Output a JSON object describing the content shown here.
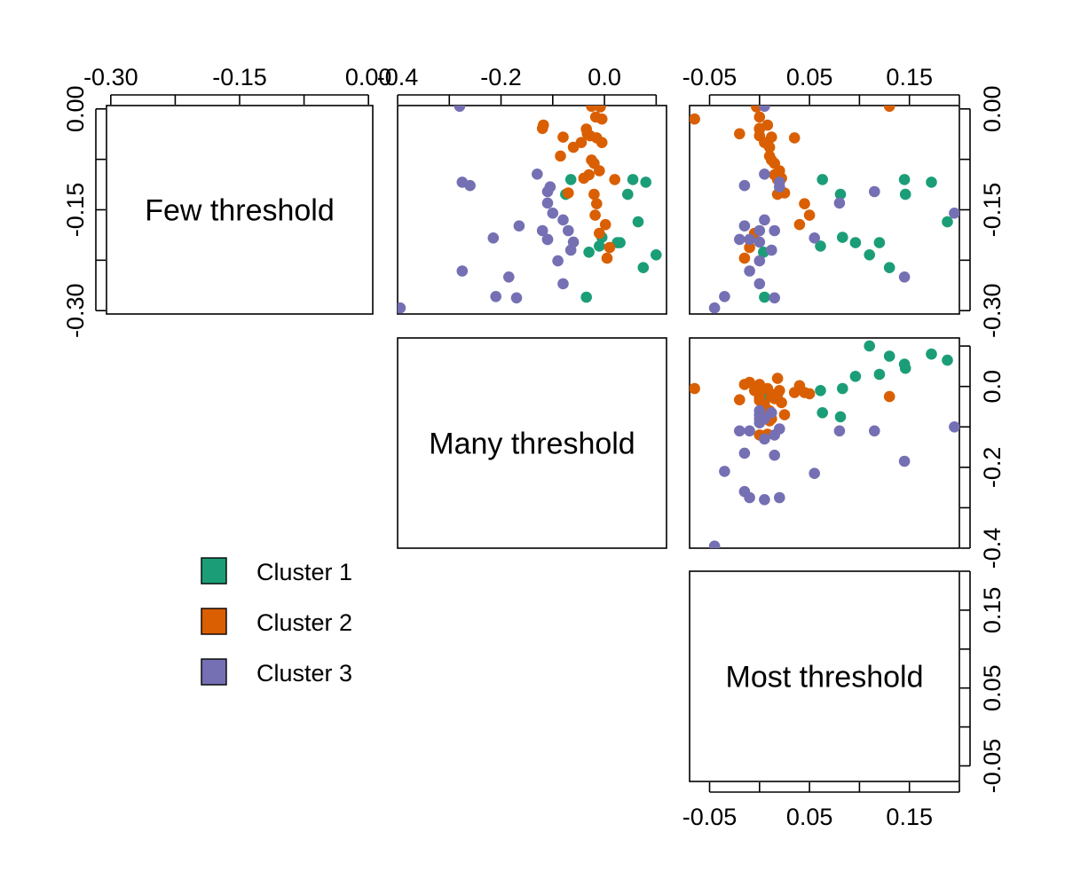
{
  "chart_data": {
    "type": "scatter",
    "layout": "pairs",
    "variables": [
      "Few threshold",
      "Many threshold",
      "Most threshold"
    ],
    "ranges": {
      "Few threshold": [
        -0.305,
        0.005
      ],
      "Many threshold": [
        -0.4,
        0.12
      ],
      "Most threshold": [
        -0.07,
        0.2
      ]
    },
    "ticks": {
      "Few threshold": [
        "-0.30",
        "-0.15",
        "0.00"
      ],
      "Many threshold": [
        "-0.4",
        "-0.2",
        "0.0"
      ],
      "Most threshold": [
        "-0.05",
        "0.05",
        "0.15"
      ]
    },
    "legend": {
      "position": "bottom-left"
    },
    "colors": {
      "Cluster 1": "#1b9e77",
      "Cluster 2": "#d95f02",
      "Cluster 3": "#7570b3"
    },
    "series": [
      {
        "name": "Cluster 1",
        "x_many": [
          0.08,
          0.055,
          -0.065,
          -0.075,
          0.045,
          0.065,
          0.025,
          -0.005,
          -0.01,
          -0.03,
          -0.035,
          0.1,
          0.075,
          0.03
        ],
        "y_few": [
          -0.109,
          -0.105,
          -0.105,
          -0.127,
          -0.127,
          -0.168,
          -0.199,
          -0.191,
          -0.204,
          -0.213,
          -0.28,
          -0.217,
          -0.236,
          -0.199
        ],
        "z_most": [
          0.172,
          0.145,
          0.063,
          0.081,
          0.146,
          0.188,
          0.096,
          0.083,
          0.061,
          0.004,
          0.005,
          0.11,
          0.13,
          0.12
        ]
      },
      {
        "name": "Cluster 2",
        "x_many": [
          0.005,
          -0.008,
          -0.017,
          -0.035,
          -0.028,
          -0.045,
          -0.005,
          -0.06,
          -0.085,
          -0.025,
          -0.02,
          0.02,
          -0.01,
          -0.03,
          -0.04,
          -0.07,
          -0.02,
          -0.015,
          -0.018,
          0.002,
          -0.01,
          0.01,
          0.005,
          -0.033,
          -0.015,
          -0.08,
          -0.12,
          -0.118,
          -0.025,
          -0.005
        ],
        "y_few": [
          0.013,
          0.003,
          -0.012,
          -0.03,
          -0.04,
          -0.05,
          -0.05,
          -0.057,
          -0.07,
          -0.076,
          -0.081,
          -0.105,
          -0.092,
          -0.098,
          -0.103,
          -0.125,
          -0.127,
          -0.141,
          -0.158,
          -0.172,
          -0.185,
          -0.206,
          -0.222,
          -0.037,
          -0.043,
          -0.042,
          -0.029,
          -0.024,
          0.004,
          -0.015
        ],
        "z_most": [
          0.0,
          -0.003,
          0.0,
          0.0,
          0.0,
          0.005,
          0.008,
          0.01,
          0.01,
          0.012,
          0.015,
          0.018,
          0.02,
          0.015,
          0.022,
          0.025,
          0.018,
          0.045,
          0.05,
          0.04,
          -0.005,
          -0.01,
          -0.015,
          -0.02,
          0.035,
          0.012,
          0.0,
          0.008,
          0.13,
          -0.065
        ]
      },
      {
        "name": "Cluster 3",
        "x_many": [
          -0.28,
          -0.275,
          -0.26,
          -0.13,
          -0.11,
          -0.11,
          -0.1,
          -0.08,
          -0.12,
          -0.11,
          -0.165,
          -0.215,
          -0.11,
          -0.07,
          -0.06,
          -0.105,
          -0.185,
          -0.08,
          -0.065,
          -0.09,
          -0.17,
          -0.395,
          -0.275,
          -0.21
        ],
        "y_few": [
          0.004,
          -0.109,
          -0.114,
          -0.097,
          -0.123,
          -0.14,
          -0.155,
          -0.165,
          -0.181,
          -0.194,
          -0.174,
          -0.192,
          -0.194,
          -0.181,
          -0.198,
          -0.116,
          -0.25,
          -0.26,
          -0.21,
          -0.226,
          -0.281,
          -0.296,
          -0.241,
          -0.279
        ],
        "z_most": [
          0.005,
          0.02,
          -0.015,
          0.005,
          0.115,
          0.08,
          0.195,
          0.005,
          0.015,
          -0.01,
          -0.015,
          0.055,
          -0.02,
          0.0,
          0.0,
          0.02,
          0.145,
          0.0,
          0.012,
          0.0,
          0.015,
          -0.045,
          -0.01,
          -0.035
        ]
      }
    ]
  }
}
